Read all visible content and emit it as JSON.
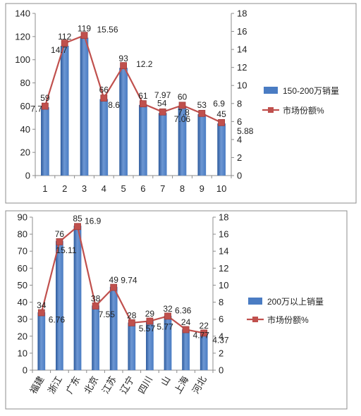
{
  "colors": {
    "bar_top": "#6d97d3",
    "bar_mid": "#4a7cc3",
    "bar_dark": "#2d5a9c",
    "line": "#c0504d",
    "marker": "#c0504d",
    "frame": "#8c8c8c"
  },
  "chart_data": [
    {
      "type": "bar",
      "categories": [
        "1",
        "2",
        "3",
        "4",
        "5",
        "6",
        "7",
        "8",
        "9",
        "10"
      ],
      "series": [
        {
          "name": "150-200万销量",
          "type": "bar",
          "axis": "left",
          "values": [
            59,
            112,
            119,
            66,
            93,
            61,
            54,
            60,
            53,
            45
          ],
          "labels": [
            "59",
            "112",
            "119",
            "66",
            "93",
            "61",
            "54",
            "60",
            "53",
            "45"
          ]
        },
        {
          "name": "市场份额%",
          "type": "line",
          "axis": "right",
          "values": [
            7.7,
            14.7,
            15.56,
            8.6,
            12.2,
            7.97,
            7.06,
            7.8,
            6.9,
            5.88
          ],
          "labels": [
            "7.7",
            "14.7",
            "15.56",
            "8.6",
            "12.2",
            "7.97",
            "7.06",
            "7.8",
            "6.9",
            "5.88"
          ]
        }
      ],
      "ylim": [
        0,
        140
      ],
      "y_ticks": [
        "0",
        "20",
        "40",
        "60",
        "80",
        "100",
        "120",
        "140"
      ],
      "y2lim": [
        0,
        18
      ],
      "y2_ticks": [
        "0",
        "2",
        "4",
        "6",
        "8",
        "10",
        "12",
        "14",
        "16",
        "18"
      ],
      "legend": "right"
    },
    {
      "type": "bar",
      "categories": [
        "福建",
        "浙江",
        "广东",
        "北京",
        "江苏",
        "辽宁",
        "四川",
        "山",
        "上海",
        "河北"
      ],
      "series": [
        {
          "name": "200万以上销量",
          "type": "bar",
          "axis": "left",
          "values": [
            34,
            76,
            85,
            38,
            49,
            28,
            29,
            32,
            24,
            22
          ],
          "labels": [
            "34",
            "76",
            "85",
            "38",
            "49",
            "28",
            "29",
            "32",
            "24",
            "22"
          ]
        },
        {
          "name": "市场份额%",
          "type": "line",
          "axis": "right",
          "values": [
            6.76,
            15.11,
            16.9,
            7.55,
            9.74,
            5.57,
            5.77,
            6.36,
            4.77,
            4.37
          ],
          "labels": [
            "6.76",
            "15.11",
            "16.9",
            "7.55",
            "9.74",
            "5.57",
            "5.77",
            "6.36",
            "4.77",
            "4.37"
          ]
        }
      ],
      "ylim": [
        0,
        90
      ],
      "y_ticks": [
        "0",
        "10",
        "20",
        "30",
        "40",
        "50",
        "60",
        "70",
        "80",
        "90"
      ],
      "y2lim": [
        0,
        18
      ],
      "y2_ticks": [
        "0",
        "2",
        "4",
        "6",
        "8",
        "10",
        "12",
        "14",
        "16",
        "18"
      ],
      "legend": "right"
    }
  ]
}
